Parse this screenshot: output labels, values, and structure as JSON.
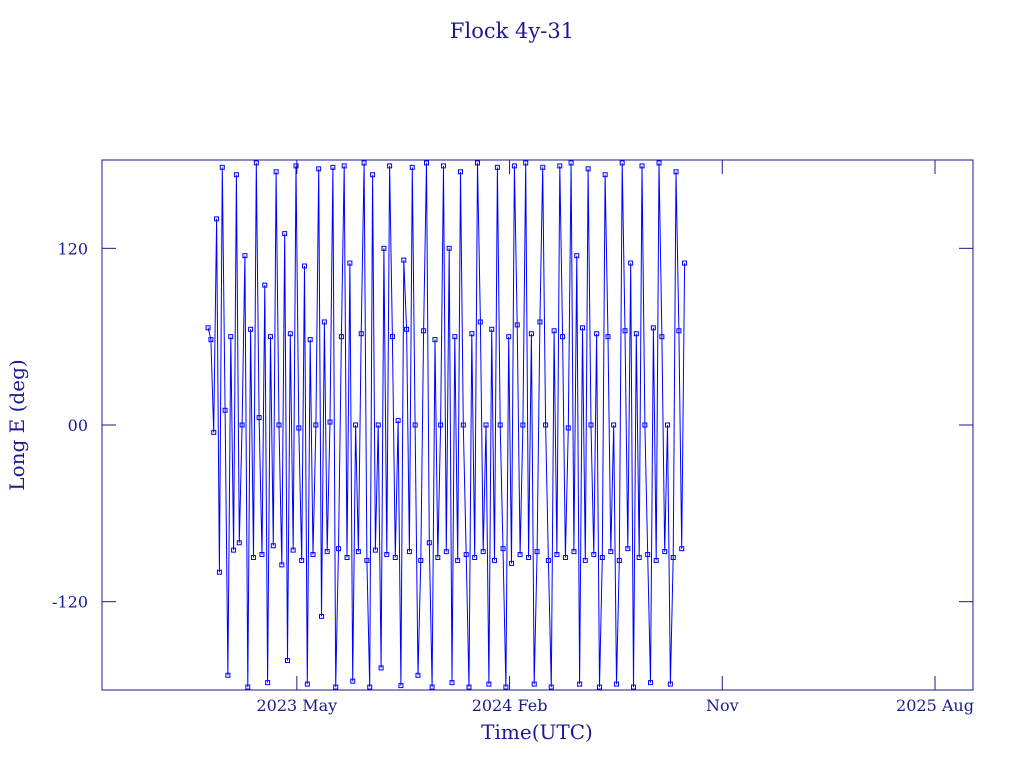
{
  "chart_data": {
    "type": "line",
    "title": "Flock 4y-31",
    "x_label": "Time(UTC)",
    "y_label": "Long E (deg)",
    "xlim": [
      2022.646,
      2025.717
    ],
    "ylim": [
      -180,
      180
    ],
    "xticks": [
      {
        "value": 2023.333,
        "label": "2023 May"
      },
      {
        "value": 2024.083,
        "label": "2024 Feb"
      },
      {
        "value": 2024.833,
        "label": "Nov"
      },
      {
        "value": 2025.583,
        "label": "2025 Aug"
      }
    ],
    "yticks": [
      {
        "value": 120,
        "label": "120"
      },
      {
        "value": 0,
        "label": "00"
      },
      {
        "value": -120,
        "label": "-120"
      }
    ],
    "series": [
      {
        "color": "#0000ff",
        "x": [
          2023.02,
          2023.03,
          2023.04,
          2023.05,
          2023.06,
          2023.07,
          2023.08,
          2023.09,
          2023.1,
          2023.11,
          2023.12,
          2023.13,
          2023.14,
          2023.15,
          2023.16,
          2023.17,
          2023.18,
          2023.19,
          2023.2,
          2023.21,
          2023.22,
          2023.23,
          2023.24,
          2023.25,
          2023.26,
          2023.27,
          2023.28,
          2023.29,
          2023.3,
          2023.31,
          2023.32,
          2023.33,
          2023.34,
          2023.35,
          2023.36,
          2023.37,
          2023.38,
          2023.39,
          2023.4,
          2023.41,
          2023.42,
          2023.43,
          2023.44,
          2023.45,
          2023.46,
          2023.47,
          2023.48,
          2023.49,
          2023.5,
          2023.51,
          2023.52,
          2023.53,
          2023.54,
          2023.55,
          2023.56,
          2023.57,
          2023.58,
          2023.59,
          2023.6,
          2023.61,
          2023.62,
          2023.63,
          2023.64,
          2023.65,
          2023.66,
          2023.67,
          2023.68,
          2023.69,
          2023.7,
          2023.71,
          2023.72,
          2023.73,
          2023.74,
          2023.75,
          2023.76,
          2023.77,
          2023.78,
          2023.79,
          2023.8,
          2023.81,
          2023.82,
          2023.83,
          2023.84,
          2023.85,
          2023.86,
          2023.87,
          2023.88,
          2023.89,
          2023.9,
          2023.91,
          2023.92,
          2023.93,
          2023.94,
          2023.95,
          2023.96,
          2023.97,
          2023.98,
          2023.99,
          2024.0,
          2024.01,
          2024.02,
          2024.03,
          2024.04,
          2024.05,
          2024.06,
          2024.07,
          2024.08,
          2024.09,
          2024.1,
          2024.11,
          2024.12,
          2024.13,
          2024.14,
          2024.15,
          2024.16,
          2024.17,
          2024.18,
          2024.19,
          2024.2,
          2024.21,
          2024.22,
          2024.23,
          2024.24,
          2024.25,
          2024.26,
          2024.27,
          2024.28,
          2024.29,
          2024.3,
          2024.31,
          2024.32,
          2024.33,
          2024.34,
          2024.35,
          2024.36,
          2024.37,
          2024.38,
          2024.39,
          2024.4,
          2024.41,
          2024.42,
          2024.43,
          2024.44,
          2024.45,
          2024.46,
          2024.47,
          2024.48,
          2024.49,
          2024.5,
          2024.51,
          2024.52,
          2024.53,
          2024.54,
          2024.55,
          2024.56,
          2024.57,
          2024.58,
          2024.59,
          2024.6,
          2024.61,
          2024.62,
          2024.63,
          2024.64,
          2024.65,
          2024.66,
          2024.67,
          2024.68,
          2024.69,
          2024.7
        ],
        "values": [
          66,
          58,
          -5,
          140,
          -100,
          175,
          10,
          -170,
          60,
          -85,
          170,
          -80,
          0,
          115,
          -178,
          65,
          -90,
          178,
          5,
          -88,
          95,
          -175,
          60,
          -82,
          172,
          0,
          -95,
          130,
          -160,
          62,
          -85,
          176,
          -2,
          -92,
          108,
          -176,
          58,
          -88,
          0,
          174,
          -130,
          70,
          -86,
          2,
          175,
          -178,
          -84,
          60,
          176,
          -90,
          110,
          -174,
          0,
          -86,
          62,
          178,
          -92,
          -178,
          170,
          -85,
          0,
          -165,
          120,
          -88,
          176,
          60,
          -90,
          3,
          -177,
          112,
          65,
          -86,
          175,
          0,
          -170,
          -92,
          64,
          178,
          -80,
          -178,
          58,
          -90,
          0,
          176,
          -86,
          120,
          -175,
          60,
          -92,
          172,
          0,
          -88,
          -178,
          62,
          -90,
          178,
          70,
          -86,
          0,
          -176,
          65,
          -92,
          175,
          0,
          -84,
          -178,
          60,
          -94,
          176,
          68,
          -88,
          0,
          178,
          -90,
          62,
          -176,
          -86,
          70,
          175,
          0,
          -92,
          -178,
          64,
          -88,
          176,
          60,
          -90,
          -2,
          178,
          -86,
          115,
          -176,
          66,
          -92,
          174,
          0,
          -88,
          62,
          -178,
          -90,
          170,
          60,
          -86,
          0,
          -176,
          -92,
          178,
          64,
          -84,
          110,
          -178,
          62,
          -90,
          176,
          0,
          -88,
          -175,
          66,
          -92,
          178,
          60,
          -86,
          0,
          -176,
          -90,
          172,
          64,
          -84,
          110
        ]
      }
    ]
  }
}
